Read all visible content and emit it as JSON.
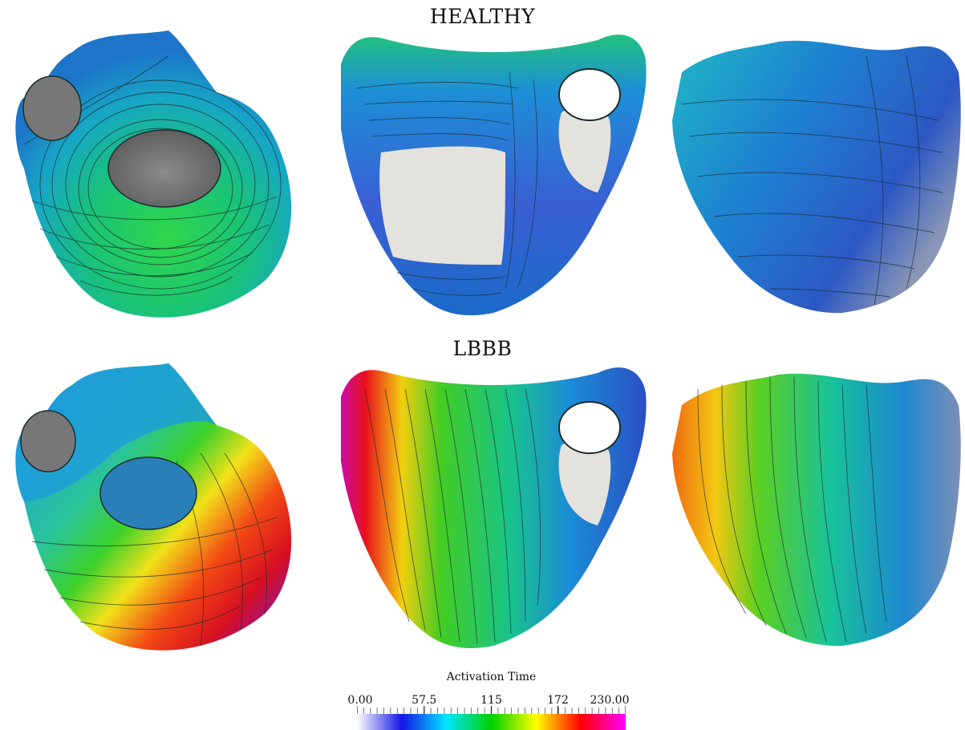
{
  "titles": {
    "healthy": "HEALTHY",
    "lbbb": "LBBB"
  },
  "colorbar": {
    "title": "Activation Time",
    "min": 0,
    "max": 230,
    "tick_labels": [
      "0.00",
      "57.5",
      "115",
      "172",
      "230.00"
    ],
    "tick_values": [
      0,
      57.5,
      115,
      172,
      230
    ],
    "colors": [
      "#ffffff",
      "#1515e6",
      "#00e5ff",
      "#00d000",
      "#ffff00",
      "#ff0000",
      "#ff00ff"
    ]
  },
  "colors": {
    "endocardium": "#e4e2dc",
    "contour": "#1b2b2b"
  }
}
